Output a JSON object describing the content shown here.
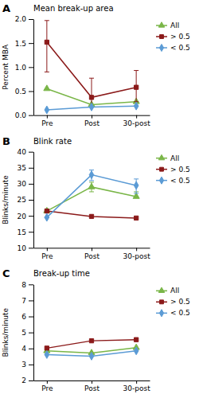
{
  "chart_data": [
    {
      "type": "line",
      "title": "Mean break-up area",
      "y_label": "Percent MBA",
      "annotations": [
        "A"
      ],
      "categories": [
        "Pre",
        "Post",
        "30-post"
      ],
      "ylim": [
        0,
        2
      ],
      "yticks": [
        {
          "value": 0,
          "label": "0.0"
        },
        0.5,
        {
          "value": 1,
          "label": "1.0"
        },
        1.5,
        {
          "value": 2,
          "label": "2.0"
        }
      ],
      "grid": false,
      "legend": "right",
      "series": [
        {
          "name": "All",
          "color": "#7ab648",
          "marker": "triangle",
          "values": [
            0.55,
            0.22,
            0.28
          ]
        },
        {
          "name": "> 0.5",
          "color": "#8b1a1a",
          "marker": "square",
          "values": [
            1.52,
            0.37,
            0.58
          ],
          "error_minus": [
            0.62,
            0.2,
            0.3
          ],
          "error_plus": [
            0.45,
            0.4,
            0.35
          ]
        },
        {
          "name": "< 0.5",
          "color": "#5b9bd5",
          "marker": "diamond",
          "values": [
            0.11,
            0.17,
            0.19
          ]
        }
      ]
    },
    {
      "type": "line",
      "title": "Blink rate",
      "y_label": "Blinks/minute",
      "annotations": [
        "B"
      ],
      "categories": [
        "Pre",
        "Post",
        "30-post"
      ],
      "ylim": [
        10,
        40
      ],
      "yticks": [
        10,
        15,
        20,
        25,
        30,
        35,
        40
      ],
      "grid": false,
      "legend": "right",
      "series": [
        {
          "name": "All",
          "color": "#7ab648",
          "marker": "triangle",
          "values": [
            21.5,
            29.0,
            26.0
          ],
          "error_minus": [
            0,
            1.5,
            0
          ],
          "error_plus": [
            0,
            1.5,
            1.5
          ]
        },
        {
          "name": "> 0.5",
          "color": "#8b1a1a",
          "marker": "square",
          "values": [
            21.5,
            19.8,
            19.3
          ]
        },
        {
          "name": "< 0.5",
          "color": "#5b9bd5",
          "marker": "diamond",
          "values": [
            19.5,
            32.8,
            29.5
          ],
          "error_minus": [
            0,
            1.8,
            2.5
          ],
          "error_plus": [
            0,
            1.5,
            2.0
          ]
        }
      ]
    },
    {
      "type": "line",
      "title": "Break-up time",
      "y_label": "Blinks/minute",
      "annotations": [
        "C"
      ],
      "categories": [
        "Pre",
        "Post",
        "30-post"
      ],
      "ylim": [
        2,
        8
      ],
      "yticks": [
        2,
        3,
        4,
        5,
        6,
        7,
        8
      ],
      "grid": false,
      "legend": "right",
      "series": [
        {
          "name": "All",
          "color": "#7ab648",
          "marker": "triangle",
          "values": [
            3.85,
            3.72,
            4.05
          ]
        },
        {
          "name": "> 0.5",
          "color": "#8b1a1a",
          "marker": "square",
          "values": [
            4.02,
            4.48,
            4.55
          ]
        },
        {
          "name": "< 0.5",
          "color": "#5b9bd5",
          "marker": "diamond",
          "values": [
            3.62,
            3.52,
            3.85
          ]
        }
      ]
    }
  ]
}
